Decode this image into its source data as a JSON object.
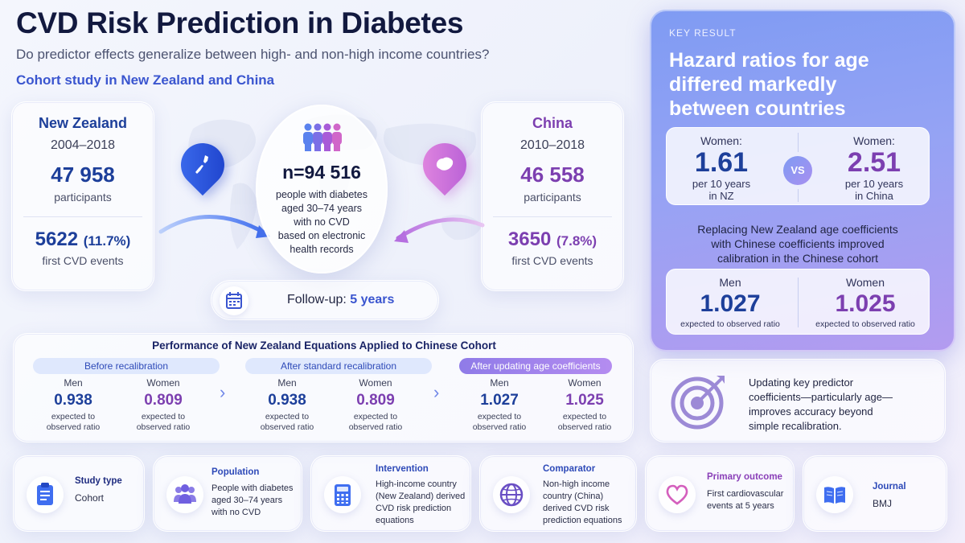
{
  "header": {
    "title": "CVD Risk Prediction in Diabetes",
    "subtitle": "Do predictor effects generalize between high- and non-high income countries?",
    "cohort": "Cohort study in New Zealand and China"
  },
  "new_zealand": {
    "name": "New Zealand",
    "years": "2004–2018",
    "participants": "47 958",
    "participants_label": "participants",
    "events": "5622",
    "events_pct": "(11.7%)",
    "events_label": "first CVD events"
  },
  "china": {
    "name": "China",
    "years": "2010–2018",
    "participants": "46 558",
    "participants_label": "participants",
    "events": "3650",
    "events_pct": "(7.8%)",
    "events_label": "first CVD events"
  },
  "center": {
    "n": "n=94 516",
    "lines": [
      "people with diabetes",
      "aged 30–74 years",
      "with no CVD",
      "based on electronic",
      "health records"
    ]
  },
  "followup": {
    "label": "Follow-up:",
    "value": "5 years"
  },
  "key_result": {
    "tag": "KEY RESULT",
    "headline": [
      "Hazard ratios for age",
      "differed markedly",
      "between countries"
    ],
    "left": {
      "label": "Women:",
      "value": "1.61",
      "sub1": "per 10 years",
      "sub2": "in NZ"
    },
    "vs": "VS",
    "right": {
      "label": "Women:",
      "value": "2.51",
      "sub1": "per 10 years",
      "sub2": "in China"
    },
    "replacing": [
      "Replacing New Zealand age coefficients",
      "with Chinese coefficients improved",
      "calibration in the Chinese cohort"
    ],
    "men": {
      "label": "Men",
      "value": "1.027",
      "sub": "expected to observed ratio"
    },
    "women": {
      "label": "Women",
      "value": "1.025",
      "sub": "expected to observed ratio"
    }
  },
  "performance": {
    "title": "Performance of New Zealand Equations Applied to Chinese Cohort",
    "stages": [
      {
        "label": "Before recalibration",
        "men": "0.938",
        "women": "0.809"
      },
      {
        "label": "After standard recalibration",
        "men": "0.938",
        "women": "0.809"
      },
      {
        "label": "After updating age coefficients",
        "men": "1.027",
        "women": "1.025"
      }
    ],
    "men_label": "Men",
    "women_label": "Women",
    "sub1": "expected to",
    "sub2": "observed ratio"
  },
  "insight": [
    "Updating key predictor",
    "coefficients—particularly age—",
    "improves accuracy beyond",
    "simple recalibration."
  ],
  "bottom": [
    {
      "title": "Study type",
      "text": [
        "Cohort"
      ],
      "icon": "clipboard-icon"
    },
    {
      "title": "Population",
      "text": [
        "People with diabetes",
        "aged 30–74 years",
        "with no CVD"
      ],
      "icon": "people-icon"
    },
    {
      "title": "Intervention",
      "text": [
        "High-income country",
        "(New Zealand) derived",
        "CVD risk prediction",
        "equations"
      ],
      "icon": "calculator-icon"
    },
    {
      "title": "Comparator",
      "text": [
        "Non-high income",
        "country (China)",
        "derived CVD risk",
        "prediction equations"
      ],
      "icon": "globe-icon"
    },
    {
      "title": "Primary outcome",
      "text": [
        "First cardiovascular",
        "events at 5 years"
      ],
      "icon": "heart-icon"
    },
    {
      "title": "Journal",
      "text": [
        "BMJ"
      ],
      "icon": "book-icon"
    }
  ],
  "colors": {
    "nz": "#1d3f9a",
    "china": "#7c3fb0",
    "accent_blue": "#3a55cf",
    "key_gradient_start": "#7f9bf3",
    "key_gradient_end": "#b39bf0"
  }
}
